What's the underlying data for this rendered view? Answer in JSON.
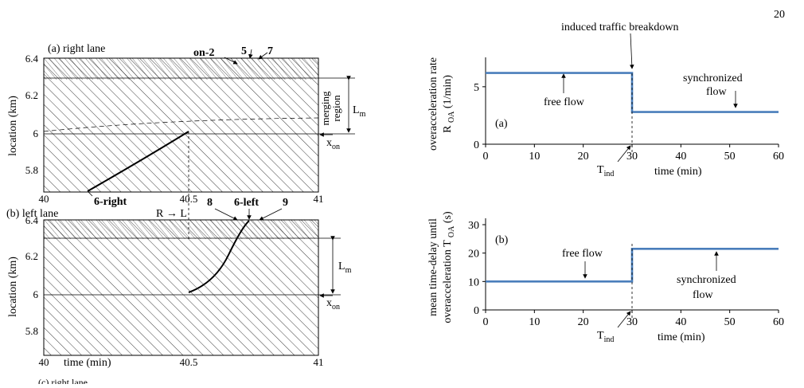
{
  "page_number": "20",
  "left_figure": {
    "panel_a_title": "(a) right lane",
    "panel_b_title": "(b) left lane",
    "panel_c_title_cut": "(c) right lane",
    "ylabel": "location (km)",
    "xlabel": "time (min)",
    "y_ticks": [
      "6.4",
      "6.2",
      "6",
      "5.8"
    ],
    "x_ticks": [
      "40",
      "40.5",
      "41"
    ],
    "labels_a": {
      "on2": "on-2",
      "v5": "5",
      "v7": "7",
      "six_right": "6-right"
    },
    "labels_b": {
      "v8": "8",
      "six_left": "6-left",
      "v9": "9",
      "lane_change": "R → L"
    },
    "merging_region": [
      "merging",
      "region"
    ],
    "lm": "L",
    "lm_sub": "m",
    "xon": "x",
    "xon_sub": "on"
  },
  "chart_data": [
    {
      "type": "line",
      "panel": "(a)",
      "ylabel": "overacceleration rate",
      "ylabel2": "R",
      "ylabel2_sub": "OA",
      "ylabel2_unit": "(1/min)",
      "xlabel": "time (min)",
      "xlim": [
        0,
        60
      ],
      "ylim": [
        0,
        7
      ],
      "x_ticks": [
        0,
        10,
        20,
        30,
        40,
        50,
        60
      ],
      "y_ticks": [
        0,
        5
      ],
      "series": [
        {
          "x": [
            0,
            30,
            30,
            60
          ],
          "y": [
            6.2,
            6.2,
            2.8,
            2.8
          ]
        }
      ],
      "annotations": {
        "breakdown": "induced traffic breakdown",
        "free": "free flow",
        "sync1": "synchronized",
        "sync2": "flow",
        "tind": "T",
        "tind_sub": "ind"
      }
    },
    {
      "type": "line",
      "panel": "(b)",
      "ylabel": "mean time-delay until",
      "ylabel2": "overacceleration T",
      "ylabel2_sub": "OA",
      "ylabel2_unit": "(s)",
      "xlabel": "time (min)",
      "xlim": [
        0,
        60
      ],
      "ylim": [
        0,
        30
      ],
      "x_ticks": [
        0,
        10,
        20,
        30,
        40,
        50,
        60
      ],
      "y_ticks": [
        0,
        10,
        20,
        30
      ],
      "series": [
        {
          "x": [
            0,
            30,
            30,
            60
          ],
          "y": [
            10,
            10,
            21.5,
            21.5
          ]
        }
      ],
      "annotations": {
        "free": "free flow",
        "sync1": "synchronized",
        "sync2": "flow",
        "tind": "T",
        "tind_sub": "ind"
      }
    }
  ]
}
